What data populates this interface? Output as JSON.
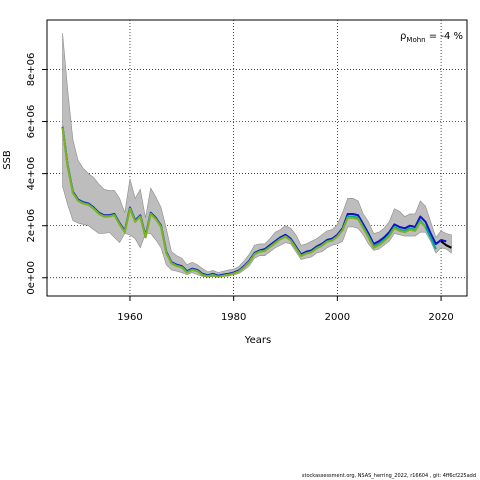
{
  "chart_data": {
    "type": "line",
    "xlabel": "Years",
    "ylabel": "SSB",
    "xlim": [
      1944,
      2025
    ],
    "ylim": [
      -700000,
      9900000
    ],
    "x_ticks": [
      1960,
      1980,
      2000,
      2020
    ],
    "x_tick_labels": [
      "1960",
      "1980",
      "2000",
      "2020"
    ],
    "y_ticks": [
      0,
      2000000,
      4000000,
      6000000,
      8000000
    ],
    "y_tick_labels": [
      "0e+00",
      "2e+06",
      "4e+06",
      "6e+06",
      "8e+06"
    ],
    "grid": "dotted",
    "annotation": {
      "symbol": "ρ",
      "subscript": "Mohn",
      "text": " = -4 %"
    },
    "band": {
      "x": [
        1947,
        1948,
        1949,
        1950,
        1951,
        1952,
        1953,
        1954,
        1955,
        1956,
        1957,
        1958,
        1959,
        1960,
        1961,
        1962,
        1963,
        1964,
        1965,
        1966,
        1967,
        1968,
        1969,
        1970,
        1971,
        1972,
        1973,
        1974,
        1975,
        1976,
        1977,
        1978,
        1979,
        1980,
        1981,
        1982,
        1983,
        1984,
        1985,
        1986,
        1987,
        1988,
        1989,
        1990,
        1991,
        1992,
        1993,
        1994,
        1995,
        1996,
        1997,
        1998,
        1999,
        2000,
        2001,
        2002,
        2003,
        2004,
        2005,
        2006,
        2007,
        2008,
        2009,
        2010,
        2011,
        2012,
        2013,
        2014,
        2015,
        2016,
        2017,
        2018,
        2019,
        2020,
        2021,
        2022
      ],
      "lower": [
        3500000,
        2800000,
        2200000,
        2100000,
        2050000,
        2000000,
        1850000,
        1700000,
        1700000,
        1750000,
        1550000,
        1350000,
        1700000,
        1650000,
        1500000,
        1150000,
        1700000,
        1700000,
        1450000,
        1150000,
        500000,
        300000,
        250000,
        200000,
        120000,
        200000,
        120000,
        50000,
        20000,
        50000,
        20000,
        50000,
        60000,
        120000,
        160000,
        300000,
        450000,
        750000,
        850000,
        850000,
        1000000,
        1150000,
        1250000,
        1350000,
        1300000,
        1000000,
        700000,
        750000,
        800000,
        950000,
        1000000,
        1150000,
        1250000,
        1300000,
        1400000,
        1950000,
        1950000,
        1900000,
        1650000,
        1300000,
        1050000,
        1100000,
        1250000,
        1400000,
        1700000,
        1650000,
        1600000,
        1600000,
        1600000,
        1750000,
        1750000,
        1400000,
        950000,
        1150000,
        1100000,
        950000
      ],
      "upper": [
        9400000,
        7200000,
        5300000,
        4500000,
        4200000,
        4000000,
        3850000,
        3600000,
        3400000,
        3350000,
        3350000,
        3050000,
        2500000,
        3800000,
        3050000,
        3400000,
        2300000,
        3450000,
        3100000,
        2700000,
        1900000,
        1000000,
        850000,
        750000,
        500000,
        600000,
        500000,
        350000,
        220000,
        280000,
        200000,
        250000,
        300000,
        330000,
        430000,
        650000,
        900000,
        1250000,
        1300000,
        1300000,
        1500000,
        1750000,
        1850000,
        2000000,
        1900000,
        1650000,
        1250000,
        1300000,
        1400000,
        1500000,
        1650000,
        1800000,
        1850000,
        2050000,
        2500000,
        3050000,
        3050000,
        2950000,
        2450000,
        2150000,
        1700000,
        1750000,
        1900000,
        2150000,
        2650000,
        2550000,
        2350000,
        2450000,
        2450000,
        2950000,
        2750000,
        2150000,
        1550000,
        1800000,
        1700000,
        1650000
      ]
    },
    "series": [
      {
        "color": "#1010cc",
        "x": [
          1947,
          1948,
          1949,
          1950,
          1951,
          1952,
          1953,
          1954,
          1955,
          1956,
          1957,
          1958,
          1959,
          1960,
          1961,
          1962,
          1963,
          1964,
          1965,
          1966,
          1967,
          1968,
          1969,
          1970,
          1971,
          1972,
          1973,
          1974,
          1975,
          1976,
          1977,
          1978,
          1979,
          1980,
          1981,
          1982,
          1983,
          1984,
          1985,
          1986,
          1987,
          1988,
          1989,
          1990,
          1991,
          1992,
          1993,
          1994,
          1995,
          1996,
          1997,
          1998,
          1999,
          2000,
          2001,
          2002,
          2003,
          2004,
          2005,
          2006,
          2007,
          2008,
          2009,
          2010,
          2011,
          2012,
          2013,
          2014,
          2015,
          2016,
          2017,
          2018,
          2019,
          2020,
          2021
        ],
        "values": [
          5800000,
          4300000,
          3300000,
          3000000,
          2900000,
          2850000,
          2700000,
          2500000,
          2400000,
          2400000,
          2450000,
          2100000,
          1800000,
          2700000,
          2200000,
          2400000,
          1600000,
          2500000,
          2300000,
          2000000,
          1000000,
          600000,
          500000,
          450000,
          250000,
          350000,
          300000,
          150000,
          100000,
          150000,
          80000,
          120000,
          150000,
          200000,
          280000,
          450000,
          650000,
          950000,
          1050000,
          1100000,
          1250000,
          1400000,
          1550000,
          1650000,
          1500000,
          1200000,
          900000,
          1000000,
          1050000,
          1200000,
          1300000,
          1450000,
          1500000,
          1650000,
          1900000,
          2450000,
          2450000,
          2400000,
          2050000,
          1700000,
          1300000,
          1400000,
          1550000,
          1750000,
          2050000,
          1950000,
          1900000,
          2000000,
          1950000,
          2350000,
          2150000,
          1700000,
          1300000,
          1450000,
          1400000
        ]
      },
      {
        "color": "#00aa88",
        "x": [
          1947,
          1948,
          1949,
          1950,
          1951,
          1952,
          1953,
          1954,
          1955,
          1956,
          1957,
          1958,
          1959,
          1960,
          1961,
          1962,
          1963,
          1964,
          1965,
          1966,
          1967,
          1968,
          1969,
          1970,
          1971,
          1972,
          1973,
          1974,
          1975,
          1976,
          1977,
          1978,
          1979,
          1980,
          1981,
          1982,
          1983,
          1984,
          1985,
          1986,
          1987,
          1988,
          1989,
          1990,
          1991,
          1992,
          1993,
          1994,
          1995,
          1996,
          1997,
          1998,
          1999,
          2000,
          2001,
          2002,
          2003,
          2004,
          2005,
          2006,
          2007,
          2008,
          2009,
          2010,
          2011,
          2012,
          2013,
          2014,
          2015,
          2016,
          2017,
          2018,
          2019
        ],
        "values": [
          5780000,
          4270000,
          3270000,
          2970000,
          2870000,
          2820000,
          2670000,
          2470000,
          2370000,
          2370000,
          2420000,
          2070000,
          1770000,
          2670000,
          2170000,
          2370000,
          1570000,
          2470000,
          2270000,
          1970000,
          970000,
          570000,
          470000,
          420000,
          220000,
          320000,
          270000,
          120000,
          70000,
          120000,
          50000,
          90000,
          120000,
          170000,
          250000,
          420000,
          620000,
          920000,
          1020000,
          1050000,
          1200000,
          1350000,
          1500000,
          1600000,
          1450000,
          1150000,
          850000,
          950000,
          1000000,
          1150000,
          1250000,
          1400000,
          1450000,
          1600000,
          1850000,
          2350000,
          2350000,
          2300000,
          1950000,
          1600000,
          1200000,
          1300000,
          1450000,
          1650000,
          1950000,
          1850000,
          1800000,
          1900000,
          1850000,
          2200000,
          1950000,
          1550000,
          1100000
        ]
      },
      {
        "color": "#80b020",
        "x": [
          1947,
          1948,
          1949,
          1950,
          1951,
          1952,
          1953,
          1954,
          1955,
          1956,
          1957,
          1958,
          1959,
          1960,
          1961,
          1962,
          1963,
          1964,
          1965,
          1966,
          1967,
          1968,
          1969,
          1970,
          1971,
          1972,
          1973,
          1974,
          1975,
          1976,
          1977,
          1978,
          1979,
          1980,
          1981,
          1982,
          1983,
          1984,
          1985,
          1986,
          1987,
          1988,
          1989,
          1990,
          1991,
          1992,
          1993,
          1994,
          1995,
          1996,
          1997,
          1998,
          1999,
          2000,
          2001,
          2002,
          2003,
          2004,
          2005,
          2006,
          2007,
          2008,
          2009,
          2010,
          2011,
          2012,
          2013,
          2014,
          2015,
          2016,
          2017
        ],
        "values": [
          5760000,
          4250000,
          3250000,
          2950000,
          2850000,
          2800000,
          2650000,
          2450000,
          2350000,
          2350000,
          2400000,
          2050000,
          1750000,
          2650000,
          2150000,
          2350000,
          1550000,
          2450000,
          2250000,
          1950000,
          950000,
          550000,
          450000,
          400000,
          200000,
          300000,
          250000,
          100000,
          60000,
          100000,
          40000,
          80000,
          110000,
          160000,
          240000,
          400000,
          600000,
          900000,
          1000000,
          1030000,
          1180000,
          1330000,
          1480000,
          1580000,
          1430000,
          1130000,
          830000,
          930000,
          980000,
          1130000,
          1230000,
          1380000,
          1430000,
          1580000,
          1830000,
          2300000,
          2300000,
          2250000,
          1900000,
          1550000,
          1150000,
          1250000,
          1400000,
          1600000,
          1900000,
          1800000,
          1750000,
          1850000,
          1800000,
          2150000,
          1950000
        ]
      },
      {
        "color": "#000000",
        "x": [
          2020,
          2021,
          2022
        ],
        "values": [
          1400000,
          1250000,
          1150000
        ]
      }
    ]
  },
  "footer": "stockassessment.org, NSAS_herring_2022, r16604 , git: 4ff6cf225add"
}
